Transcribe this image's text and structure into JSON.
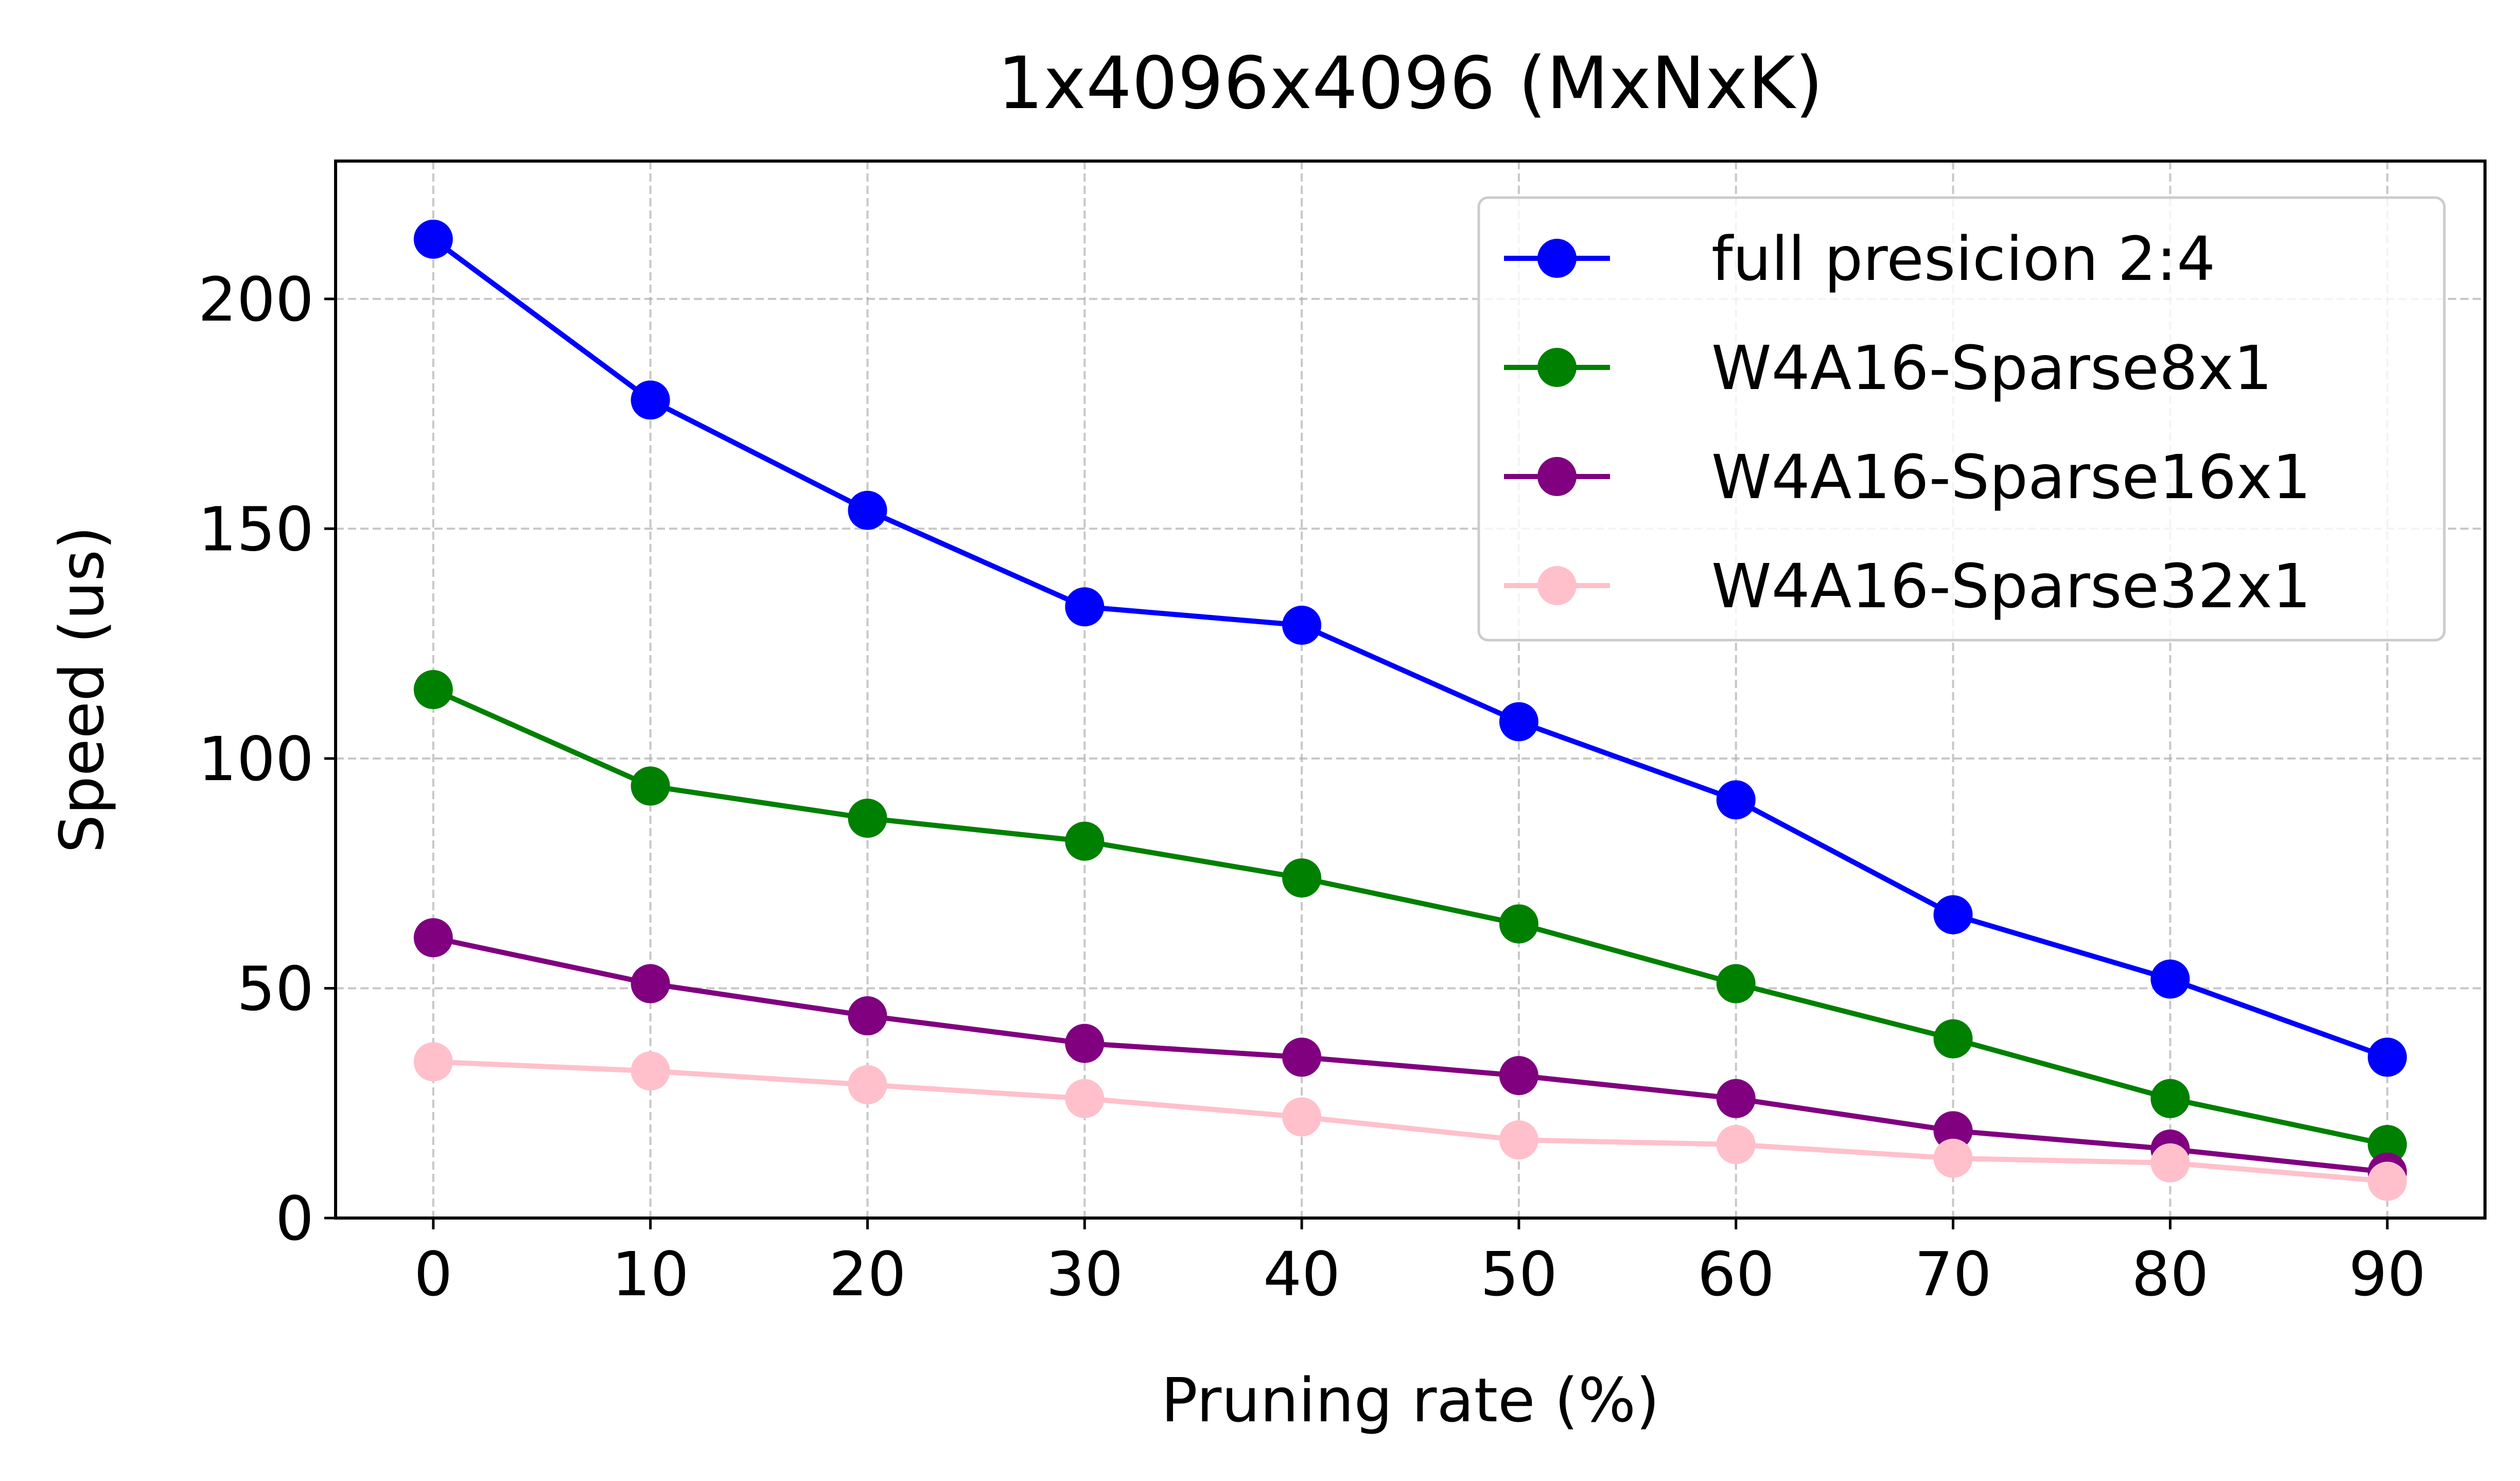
{
  "chart_data": {
    "type": "line",
    "title": "1x4096x4096 (MxNxK)",
    "xlabel": "Pruning rate (%)",
    "ylabel": "Speed (us)",
    "x": [
      0,
      10,
      20,
      30,
      40,
      50,
      60,
      70,
      80,
      90
    ],
    "xticks": [
      "0",
      "10",
      "20",
      "30",
      "40",
      "50",
      "60",
      "70",
      "80",
      "90"
    ],
    "yticks": [
      "0",
      "50",
      "100",
      "150",
      "200"
    ],
    "xlim": [
      -4.5,
      94.5
    ],
    "ylim": [
      0,
      230
    ],
    "grid": true,
    "legend_position": "top-right",
    "series": [
      {
        "name": "full presicion 2:4",
        "color": "#0000ff",
        "values": [
          213,
          178,
          154,
          133,
          129,
          108,
          91,
          66,
          52,
          35
        ]
      },
      {
        "name": "W4A16-Sparse8x1",
        "color": "#008000",
        "values": [
          115,
          94,
          87,
          82,
          74,
          64,
          51,
          39,
          26,
          16
        ]
      },
      {
        "name": "W4A16-Sparse16x1",
        "color": "#800080",
        "values": [
          61,
          51,
          44,
          38,
          35,
          31,
          26,
          19,
          15,
          10
        ]
      },
      {
        "name": "W4A16-Sparse32x1",
        "color": "#ffc0cb",
        "values": [
          34,
          32,
          29,
          26,
          22,
          17,
          16,
          13,
          12,
          8
        ]
      }
    ]
  }
}
